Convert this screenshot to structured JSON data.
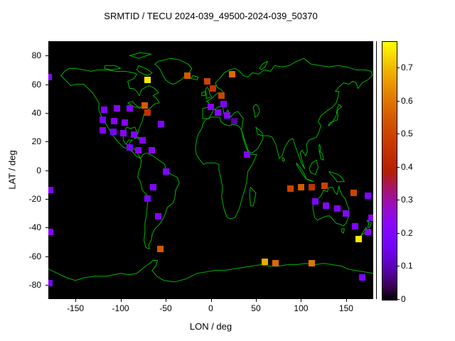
{
  "title": "SRMTID / TECU 2024-039_49500-2024-039_50370",
  "colors": {
    "background": "#ffffff",
    "plot_background": "#000000",
    "coastline": "#00b400",
    "text": "#000000"
  },
  "map": {
    "description": "world coastline outline, equirectangular projection"
  },
  "chart_data": {
    "type": "heatmap",
    "title": "SRMTID / TECU 2024-039_49500-2024-039_50370",
    "xlabel": "LON / deg",
    "ylabel": "LAT / deg",
    "xlim": [
      -180,
      180
    ],
    "ylim": [
      -90,
      90
    ],
    "x_ticks": [
      -150,
      -100,
      -50,
      0,
      50,
      100,
      150
    ],
    "y_ticks": [
      80,
      60,
      40,
      20,
      0,
      -20,
      -40,
      -60,
      -80
    ],
    "colorbar": {
      "min": 0,
      "max": 0.78,
      "ticks": [
        0,
        0.1,
        0.2,
        0.3,
        0.4,
        0.5,
        0.6,
        0.7
      ],
      "palette": "gnuplot pm3d black-violet-red-yellow"
    },
    "value_units": "TECU",
    "points": [
      {
        "lon": -180,
        "lat": 65,
        "v": 0.2
      },
      {
        "lon": -70,
        "lat": 63,
        "v": 0.76
      },
      {
        "lon": -26,
        "lat": 66,
        "v": 0.55
      },
      {
        "lon": -4,
        "lat": 62,
        "v": 0.5
      },
      {
        "lon": 2,
        "lat": 57,
        "v": 0.45
      },
      {
        "lon": 24,
        "lat": 67,
        "v": 0.58
      },
      {
        "lon": -118,
        "lat": 42,
        "v": 0.2
      },
      {
        "lon": -104,
        "lat": 43,
        "v": 0.22
      },
      {
        "lon": -90,
        "lat": 43,
        "v": 0.2
      },
      {
        "lon": -73,
        "lat": 45,
        "v": 0.55
      },
      {
        "lon": -70,
        "lat": 40,
        "v": 0.45
      },
      {
        "lon": -120,
        "lat": 35,
        "v": 0.18
      },
      {
        "lon": -107,
        "lat": 34,
        "v": 0.22
      },
      {
        "lon": -95,
        "lat": 33,
        "v": 0.2
      },
      {
        "lon": -120,
        "lat": 28,
        "v": 0.2
      },
      {
        "lon": -108,
        "lat": 27,
        "v": 0.18
      },
      {
        "lon": -97,
        "lat": 26,
        "v": 0.22
      },
      {
        "lon": -85,
        "lat": 25,
        "v": 0.2
      },
      {
        "lon": -55,
        "lat": 32,
        "v": 0.2
      },
      {
        "lon": -76,
        "lat": 21,
        "v": 0.2
      },
      {
        "lon": -90,
        "lat": 16,
        "v": 0.18
      },
      {
        "lon": -80,
        "lat": 14,
        "v": 0.2
      },
      {
        "lon": -65,
        "lat": 14,
        "v": 0.22
      },
      {
        "lon": 0,
        "lat": 44,
        "v": 0.2
      },
      {
        "lon": 8,
        "lat": 40,
        "v": 0.22
      },
      {
        "lon": 14,
        "lat": 46,
        "v": 0.2
      },
      {
        "lon": 18,
        "lat": 38,
        "v": 0.22
      },
      {
        "lon": 26,
        "lat": 34,
        "v": 0.08
      },
      {
        "lon": 12,
        "lat": 52,
        "v": 0.5
      },
      {
        "lon": 40,
        "lat": 11,
        "v": 0.2
      },
      {
        "lon": -50,
        "lat": -1,
        "v": 0.2
      },
      {
        "lon": -64,
        "lat": -12,
        "v": 0.2
      },
      {
        "lon": -70,
        "lat": -20,
        "v": 0.18
      },
      {
        "lon": -58,
        "lat": -32,
        "v": 0.2
      },
      {
        "lon": -56,
        "lat": -55,
        "v": 0.55
      },
      {
        "lon": -178,
        "lat": -14,
        "v": 0.2
      },
      {
        "lon": -178,
        "lat": -43,
        "v": 0.22
      },
      {
        "lon": -179,
        "lat": -79,
        "v": 0.18
      },
      {
        "lon": 88,
        "lat": -13,
        "v": 0.5
      },
      {
        "lon": 100,
        "lat": -12,
        "v": 0.55
      },
      {
        "lon": 112,
        "lat": -12,
        "v": 0.45
      },
      {
        "lon": 126,
        "lat": -11,
        "v": 0.5
      },
      {
        "lon": 116,
        "lat": -22,
        "v": 0.2
      },
      {
        "lon": 128,
        "lat": -25,
        "v": 0.22
      },
      {
        "lon": 140,
        "lat": -27,
        "v": 0.2
      },
      {
        "lon": 150,
        "lat": -30,
        "v": 0.22
      },
      {
        "lon": 158,
        "lat": -16,
        "v": 0.5
      },
      {
        "lon": 174,
        "lat": -18,
        "v": 0.2
      },
      {
        "lon": 160,
        "lat": -39,
        "v": 0.2
      },
      {
        "lon": 164,
        "lat": -48,
        "v": 0.76
      },
      {
        "lon": 174,
        "lat": -43,
        "v": 0.22
      },
      {
        "lon": 178,
        "lat": -33,
        "v": 0.2
      },
      {
        "lon": 60,
        "lat": -64,
        "v": 0.68
      },
      {
        "lon": 72,
        "lat": -65,
        "v": 0.58
      },
      {
        "lon": 112,
        "lat": -65,
        "v": 0.6
      },
      {
        "lon": 168,
        "lat": -75,
        "v": 0.2
      }
    ]
  }
}
